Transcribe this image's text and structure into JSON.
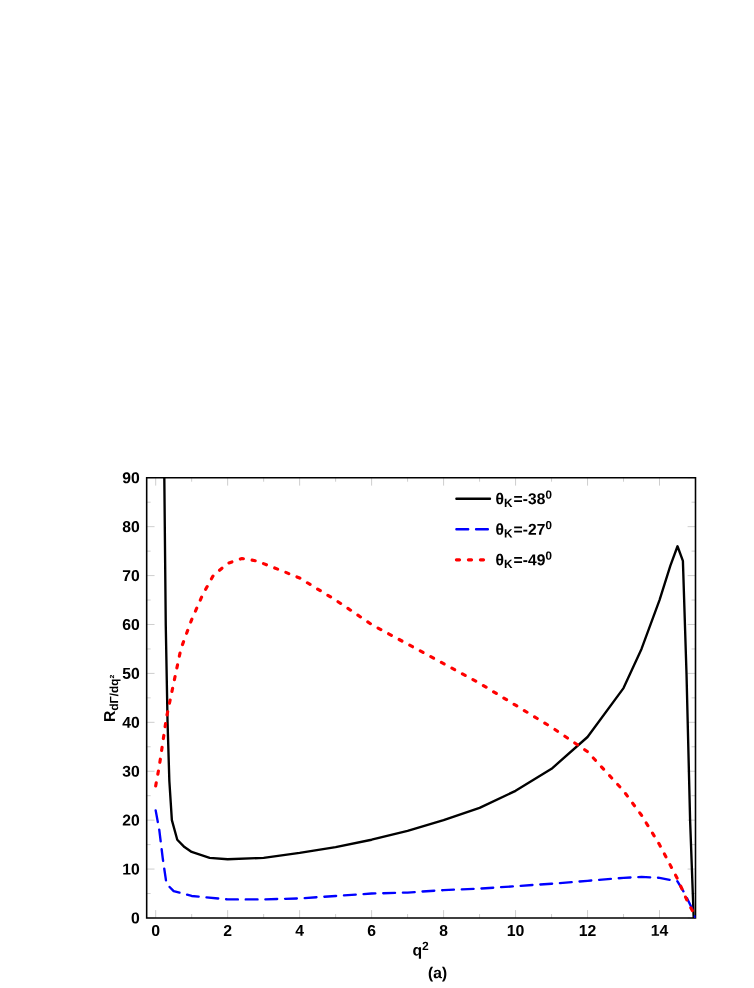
{
  "chart_data": {
    "type": "line",
    "xlabel": "q$^{2}$",
    "ylabel": "R$_{dΓ/dq²}$",
    "annotations": [
      "(a)"
    ],
    "xlim": [
      -0.25,
      15
    ],
    "ylim": [
      0,
      90
    ],
    "xticks": [
      0,
      2,
      4,
      6,
      8,
      10,
      12,
      14
    ],
    "yticks": [
      0,
      10,
      20,
      30,
      40,
      50,
      60,
      70,
      80,
      90
    ],
    "legend": "top right",
    "grid": false,
    "marker": "none",
    "series": [
      {
        "name": "θ$_{K}$=-38$^{0}$",
        "color": "#000000",
        "line_style": "solid",
        "x": [
          0.24,
          0.28,
          0.33,
          0.38,
          0.45,
          0.6,
          0.8,
          1.0,
          1.5,
          2,
          3,
          4,
          5,
          6,
          7,
          8,
          9,
          10,
          11,
          12,
          13,
          13.5,
          14,
          14.3,
          14.5,
          14.65,
          14.75,
          14.85,
          14.95
        ],
        "values": [
          90,
          60,
          40,
          28,
          20,
          16,
          14.5,
          13.5,
          12.3,
          12,
          12.3,
          13.3,
          14.5,
          16,
          17.8,
          20,
          22.5,
          26,
          30.5,
          37,
          47,
          55,
          65,
          72,
          76,
          73,
          50,
          20,
          0
        ]
      },
      {
        "name": "θ$_{K}$=-27$^{0}$",
        "color": "#0000ff",
        "line_style": "dashed",
        "x": [
          0,
          0.1,
          0.2,
          0.3,
          0.5,
          1,
          2,
          3,
          4,
          5,
          6,
          7,
          8,
          9,
          10,
          11,
          12,
          13,
          13.5,
          14,
          14.5,
          14.7,
          14.9,
          15
        ],
        "values": [
          22,
          18,
          12,
          7,
          5.5,
          4.5,
          3.8,
          3.8,
          4,
          4.5,
          5,
          5.2,
          5.7,
          6,
          6.5,
          7,
          7.6,
          8.2,
          8.4,
          8.2,
          7.5,
          5,
          2,
          0
        ]
      },
      {
        "name": "θ$_{K}$=-49$^{0}$",
        "color": "#ff0000",
        "line_style": "dotted",
        "x": [
          0,
          0.1,
          0.2,
          0.3,
          0.5,
          0.7,
          1,
          1.3,
          1.6,
          2,
          2.4,
          2.8,
          3.5,
          4,
          5,
          6,
          7,
          8,
          9,
          10,
          11,
          12,
          13,
          13.5,
          14,
          14.5,
          14.8,
          14.95
        ],
        "values": [
          27,
          31,
          36,
          41,
          48,
          55,
          61,
          66,
          70,
          72.5,
          73.5,
          73,
          71,
          69.5,
          65,
          60,
          56,
          52,
          48,
          43.5,
          39,
          34,
          26,
          21,
          15,
          8,
          3,
          1
        ]
      }
    ]
  }
}
